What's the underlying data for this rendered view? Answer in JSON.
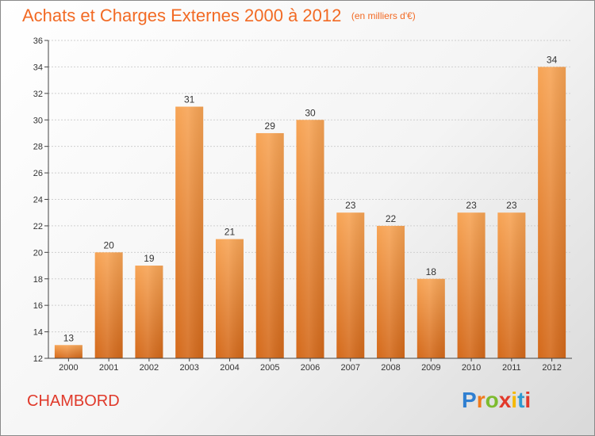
{
  "title": "Achats et Charges Externes 2000 à 2012",
  "subtitle": "(en milliers d'€)",
  "commune": "CHAMBORD",
  "brand": {
    "letters": [
      "P",
      "r",
      "o",
      "x",
      "i",
      "t",
      "i"
    ],
    "colors": [
      "#2f7fd1",
      "#f07a1c",
      "#7dbb2e",
      "#e23a2b",
      "#f5b800",
      "#2f9ad1",
      "#e23a2b"
    ]
  },
  "colors": {
    "title": "#f26a24",
    "bar_top": "#f7a455",
    "bar_bottom": "#d4691a",
    "axis": "#444444",
    "grid": "#cfcfcf"
  },
  "chart_data": {
    "type": "bar",
    "title": "Achats et Charges Externes 2000 à 2012",
    "subtitle": "(en milliers d'€)",
    "categories": [
      "2000",
      "2001",
      "2002",
      "2003",
      "2004",
      "2005",
      "2006",
      "2007",
      "2008",
      "2009",
      "2010",
      "2011",
      "2012"
    ],
    "values": [
      13,
      20,
      19,
      31,
      21,
      29,
      30,
      23,
      22,
      18,
      23,
      23,
      34
    ],
    "ylim": [
      12,
      36
    ],
    "yticks": [
      12,
      14,
      16,
      18,
      20,
      22,
      24,
      26,
      28,
      30,
      32,
      34,
      36
    ],
    "grid": true,
    "legend": "none"
  }
}
